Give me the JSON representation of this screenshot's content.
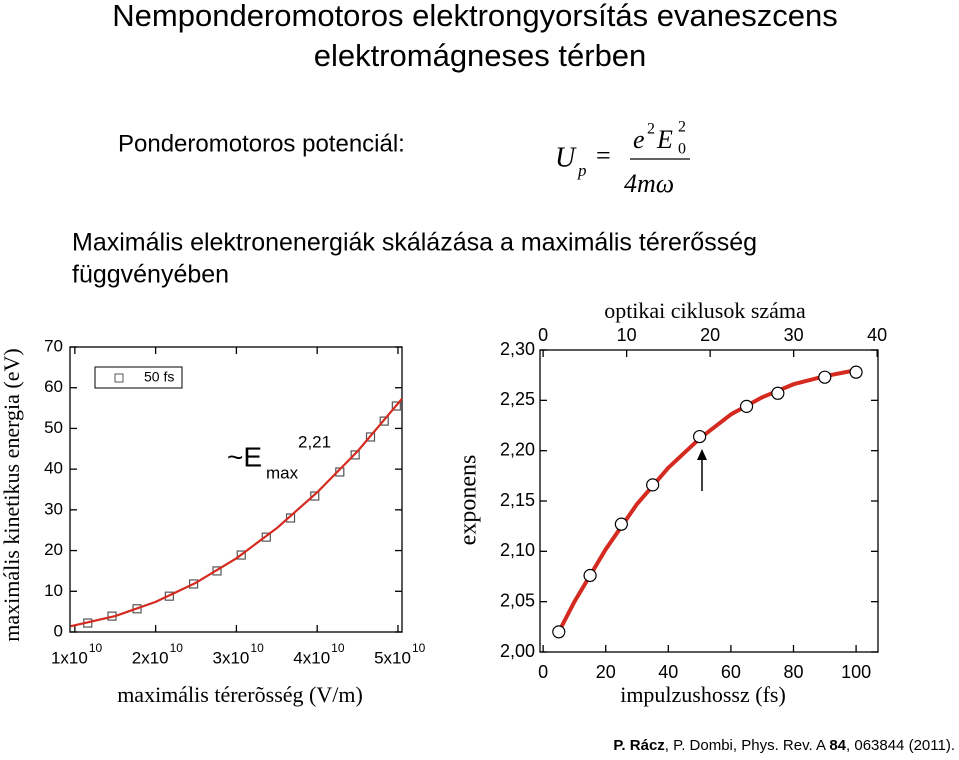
{
  "title": [
    "Nemponderomotoros elektrongyorsítás evaneszcens",
    "elektromágneses térben"
  ],
  "potential_label": "Ponderomotoros potenciál:",
  "formula": {
    "lhs": "U",
    "lhs_sub": "p",
    "eq": "=",
    "num_e": "e",
    "num_e_sup": "2",
    "num_E": "E",
    "num_E_sup": "2",
    "num_E_sub": "0",
    "den": "4mω"
  },
  "subtitle": [
    "Maximális elektronenergiák skálázása a maximális térerősség",
    "függvényében"
  ],
  "reference": {
    "author1": "P. Rácz",
    "rest1": ", P. Dombi,  Phys. Rev. A ",
    "volume": "84",
    "rest2": ", 063844 (2011)."
  },
  "chart_data": [
    {
      "type": "scatter",
      "xlabel": "maximális térerõsség (V/m)",
      "ylabel": "maximális kinetikus energia (eV)",
      "annotation": {
        "text": "~E",
        "sub": "max",
        "sup": "2,21"
      },
      "xlim": [
        9400000000,
        50500000000
      ],
      "ylim": [
        0,
        70
      ],
      "xticks": [
        {
          "value": 10000000000,
          "label": "1x10",
          "exponent": "10"
        },
        {
          "value": 20000000000,
          "label": "2x10",
          "exponent": "10"
        },
        {
          "value": 30000000000,
          "label": "3x10",
          "exponent": "10"
        },
        {
          "value": 40000000000,
          "label": "4x10",
          "exponent": "10"
        },
        {
          "value": 50000000000,
          "label": "5x10",
          "exponent": "10"
        }
      ],
      "yticks": [
        0,
        10,
        20,
        30,
        40,
        50,
        60,
        70
      ],
      "legend": "upper left",
      "series": [
        {
          "name": "50 fs",
          "marker": "square",
          "color": "#555555",
          "x": [
            11600000000,
            14600000000,
            17700000000,
            21700000000,
            24700000000,
            27600000000,
            30600000000,
            33700000000,
            36700000000,
            39700000000,
            42800000000,
            44700000000,
            46600000000,
            48300000000,
            49800000000
          ],
          "values": [
            2.2,
            3.9,
            5.7,
            8.8,
            11.8,
            15.0,
            18.9,
            23.3,
            28.0,
            33.4,
            39.3,
            43.5,
            47.9,
            51.8,
            55.5
          ]
        },
        {
          "style": "line",
          "color": "#d42a20",
          "x": [
            9500000000,
            15000000000,
            20000000000,
            25000000000,
            30000000000,
            35000000000,
            40000000000,
            45000000000,
            50000000000,
            50500000000
          ],
          "values": [
            1.43,
            3.92,
            7.4,
            12.1,
            18.1,
            25.5,
            34.3,
            44.4,
            56.1,
            57.3
          ]
        }
      ]
    },
    {
      "type": "scatter",
      "xlabel": "impulzushossz (fs)",
      "ylabel": "exponens",
      "x2label": "optikai ciklusok száma",
      "xlim": [
        -1,
        107
      ],
      "ylim": [
        2.0,
        2.3
      ],
      "x2lim": [
        -0.375,
        40.1
      ],
      "xticks": [
        0,
        20,
        40,
        60,
        80,
        100
      ],
      "x2ticks": [
        0,
        10,
        20,
        30,
        40
      ],
      "yticks": [
        {
          "value": 2.0,
          "label": "2,00"
        },
        {
          "value": 2.05,
          "label": "2,05"
        },
        {
          "value": 2.1,
          "label": "2,10"
        },
        {
          "value": 2.15,
          "label": "2,15"
        },
        {
          "value": 2.2,
          "label": "2,20"
        },
        {
          "value": 2.25,
          "label": "2,25"
        },
        {
          "value": 2.3,
          "label": "2,30"
        }
      ],
      "series": [
        {
          "style": "line",
          "color": "#d42a20",
          "x": [
            5,
            10,
            15,
            20,
            30,
            40,
            50,
            60,
            70,
            80,
            90,
            100
          ],
          "values": [
            2.02,
            2.05,
            2.076,
            2.102,
            2.147,
            2.183,
            2.212,
            2.236,
            2.253,
            2.266,
            2.274,
            2.28
          ]
        },
        {
          "marker": "circle",
          "color": "#000000",
          "x": [
            5,
            15,
            25,
            35,
            50,
            65,
            75,
            90,
            100
          ],
          "values": [
            2.02,
            2.076,
            2.127,
            2.166,
            2.214,
            2.244,
            2.257,
            2.273,
            2.278
          ]
        }
      ]
    }
  ]
}
